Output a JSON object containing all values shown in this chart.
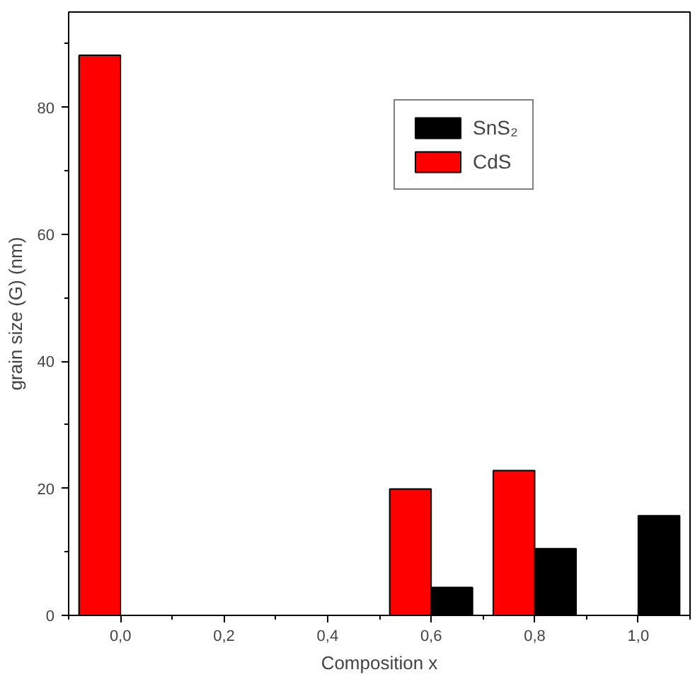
{
  "chart_data": {
    "type": "bar",
    "xlabel": "Composition x",
    "ylabel": "grain size (G) (nm)",
    "series": [
      {
        "name": "SnS₂",
        "color": "#000000",
        "x": [
          0.6,
          0.8,
          1.0
        ],
        "values": [
          4.4,
          10.5,
          15.7
        ]
      },
      {
        "name": "CdS",
        "color": "#ff0000",
        "x": [
          0.0,
          0.6,
          0.8
        ],
        "values": [
          88.2,
          19.9,
          22.8
        ]
      }
    ],
    "xlim": [
      -0.1,
      1.1
    ],
    "ylim": [
      0,
      95
    ],
    "xticks": [
      {
        "value": 0,
        "label": "0,0"
      },
      {
        "value": 0.2,
        "label": "0,2"
      },
      {
        "value": 0.4,
        "label": "0,4"
      },
      {
        "value": 0.6,
        "label": "0,6"
      },
      {
        "value": 0.8,
        "label": "0,8"
      },
      {
        "value": 1.0,
        "label": "1,0"
      }
    ],
    "yticks": [
      0,
      20,
      40,
      60,
      80
    ],
    "grid": false,
    "legend": "top"
  }
}
